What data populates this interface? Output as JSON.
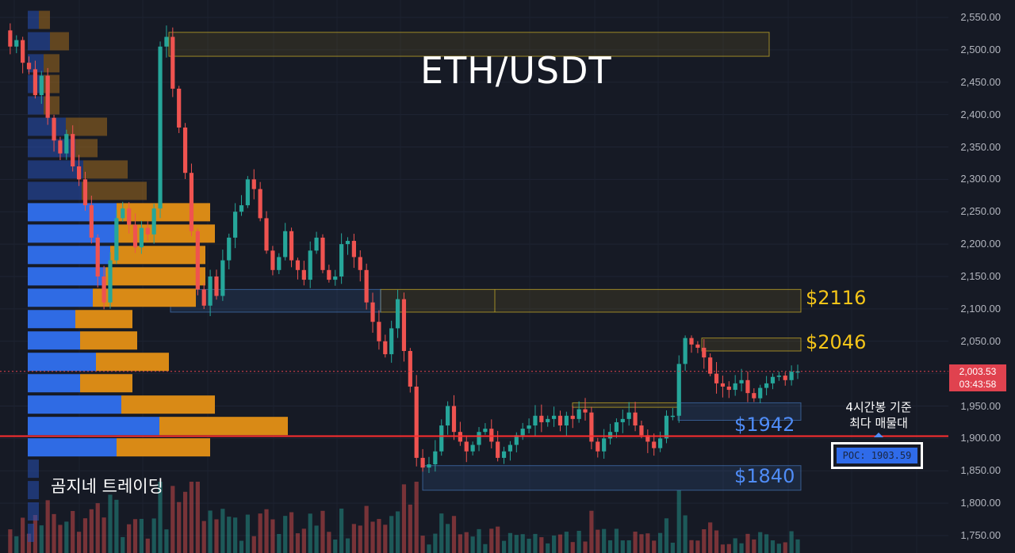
{
  "chart_data": {
    "type": "candlestick",
    "title": "ETH/USDT",
    "watermark": "곰지네 트레이딩",
    "y_axis": {
      "ylim": [
        1725,
        2562
      ],
      "ticks": [
        "2,550.00",
        "2,500.00",
        "2,450.00",
        "2,400.00",
        "2,350.00",
        "2,300.00",
        "2,250.00",
        "2,200.00",
        "2,150.00",
        "2,100.00",
        "2,050.00",
        "2,000.00",
        "1,950.00",
        "1,900.00",
        "1,850.00",
        "1,800.00",
        "1,750.00"
      ],
      "tick_values": [
        2550,
        2500,
        2450,
        2400,
        2350,
        2300,
        2250,
        2200,
        2150,
        2100,
        2050,
        2000,
        1950,
        1900,
        1850,
        1800,
        1750
      ]
    },
    "current_price": {
      "value": "2,003.53",
      "countdown": "03:43:58",
      "level": 2003.53
    },
    "levels": [
      {
        "label": "$2116",
        "value": 2116,
        "color": "#f5c518"
      },
      {
        "label": "$2046",
        "value": 2046,
        "color": "#f5c518"
      },
      {
        "label": "$1942",
        "value": 1942,
        "color": "#4f8cf7"
      },
      {
        "label": "$1840",
        "value": 1840,
        "color": "#4f8cf7"
      }
    ],
    "poc": {
      "label": "POC: 1903.59",
      "value": 1903.59,
      "note_line1": "4시간봉 기준",
      "note_line2": "최다 매물대"
    },
    "zones": [
      {
        "kind": "supply",
        "from": 2490,
        "to": 2527
      },
      {
        "kind": "supply",
        "from": 2095,
        "to": 2130
      },
      {
        "kind": "demand",
        "from": 2095,
        "to": 2130
      },
      {
        "kind": "supply",
        "from": 2035,
        "to": 2055
      },
      {
        "kind": "supply",
        "from": 1948,
        "to": 1955
      },
      {
        "kind": "demand",
        "from": 1928,
        "to": 1955
      },
      {
        "kind": "demand",
        "from": 1820,
        "to": 1858
      }
    ],
    "volume_profile": [
      {
        "price": 2545,
        "buy": 14,
        "sell": 14
      },
      {
        "price": 2512,
        "buy": 28,
        "sell": 24
      },
      {
        "price": 2478,
        "buy": 20,
        "sell": 20
      },
      {
        "price": 2446,
        "buy": 20,
        "sell": 20
      },
      {
        "price": 2413,
        "buy": 20,
        "sell": 20
      },
      {
        "price": 2380,
        "buy": 48,
        "sell": 52
      },
      {
        "price": 2347,
        "buy": 60,
        "sell": 28
      },
      {
        "price": 2314,
        "buy": 70,
        "sell": 56
      },
      {
        "price": 2281,
        "buy": 68,
        "sell": 82
      },
      {
        "price": 2248,
        "buy": 112,
        "sell": 118
      },
      {
        "price": 2215,
        "buy": 110,
        "sell": 126
      },
      {
        "price": 2182,
        "buy": 104,
        "sell": 120
      },
      {
        "price": 2149,
        "buy": 98,
        "sell": 126
      },
      {
        "price": 2116,
        "buy": 82,
        "sell": 130
      },
      {
        "price": 2083,
        "buy": 60,
        "sell": 72
      },
      {
        "price": 2050,
        "buy": 66,
        "sell": 72
      },
      {
        "price": 2017,
        "buy": 86,
        "sell": 92
      },
      {
        "price": 1984,
        "buy": 66,
        "sell": 66
      },
      {
        "price": 1951,
        "buy": 118,
        "sell": 118
      },
      {
        "price": 1918,
        "buy": 166,
        "sell": 162
      },
      {
        "price": 1885,
        "buy": 112,
        "sell": 118
      },
      {
        "price": 1852,
        "buy": 14,
        "sell": 0
      },
      {
        "price": 1819,
        "buy": 14,
        "sell": 0
      },
      {
        "price": 1786,
        "buy": 14,
        "sell": 0
      },
      {
        "price": 1753,
        "buy": 8,
        "sell": 0
      }
    ],
    "price_path": [
      2530,
      2505,
      2515,
      2480,
      2470,
      2430,
      2460,
      2395,
      2360,
      2340,
      2370,
      2320,
      2300,
      2260,
      2210,
      2150,
      2110,
      2175,
      2240,
      2255,
      2230,
      2195,
      2225,
      2215,
      2255,
      2505,
      2520,
      2440,
      2380,
      2310,
      2220,
      2130,
      2105,
      2150,
      2120,
      2175,
      2210,
      2250,
      2260,
      2300,
      2285,
      2240,
      2190,
      2160,
      2180,
      2220,
      2175,
      2160,
      2145,
      2190,
      2210,
      2160,
      2145,
      2150,
      2200,
      2205,
      2180,
      2160,
      2110,
      2080,
      2050,
      2030,
      2070,
      2115,
      2035,
      1980,
      1870,
      1855,
      1860,
      1880,
      1920,
      1950,
      1910,
      1895,
      1880,
      1890,
      1910,
      1915,
      1895,
      1870,
      1880,
      1890,
      1905,
      1915,
      1920,
      1935,
      1925,
      1930,
      1935,
      1920,
      1935,
      1930,
      1945,
      1940,
      1895,
      1880,
      1900,
      1910,
      1925,
      1930,
      1940,
      1920,
      1905,
      1895,
      1885,
      1900,
      1935,
      1935,
      2015,
      2055,
      2045,
      2040,
      2025,
      2000,
      1985,
      1980,
      1975,
      1985,
      1990,
      1970,
      1962,
      1978,
      1985,
      1995,
      1997,
      1990,
      2003,
      2003.53
    ]
  }
}
